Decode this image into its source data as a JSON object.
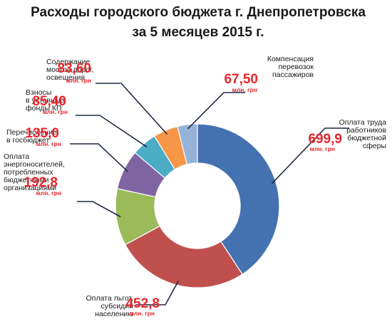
{
  "chart_data": {
    "type": "pie",
    "variant": "donut",
    "title": "Расходы городского бюджета г. Днепропетровска",
    "subtitle": "за 5 месяцев 2015 г.",
    "unit_label": "млн. грн",
    "slices": [
      {
        "label_lines": [
          "Оплата труда",
          "работников",
          "бюджетной",
          "сферы"
        ],
        "value": 699.9,
        "value_text": "699,9",
        "color": "#4472b0"
      },
      {
        "label_lines": [
          "Оплата льгот,",
          "субсидий",
          "населению"
        ],
        "value": 452.8,
        "value_text": "452,8",
        "color": "#c0504d"
      },
      {
        "label_lines": [
          "Оплата",
          "энергоносителей,",
          "потребленных",
          "бюджетными",
          "организациями"
        ],
        "value": 192.8,
        "value_text": "192,8",
        "color": "#9bbb59"
      },
      {
        "label_lines": [
          "Перечисление",
          "в госбюджет"
        ],
        "value": 135.0,
        "value_text": "135,0",
        "color": "#8064a2"
      },
      {
        "label_lines": [
          "Взносы",
          "в уставные",
          "фонды КП"
        ],
        "value": 85.4,
        "value_text": "85,40",
        "color": "#4bacc6"
      },
      {
        "label_lines": [
          "Содержание",
          "мостов,дорог,",
          "освещения"
        ],
        "value": 83.6,
        "value_text": "83,60",
        "color": "#f79646"
      },
      {
        "label_lines": [
          "Компенсация",
          "перевозок",
          "пассажиров"
        ],
        "value": 67.5,
        "value_text": "67,50",
        "color": "#95b3d7"
      }
    ]
  }
}
